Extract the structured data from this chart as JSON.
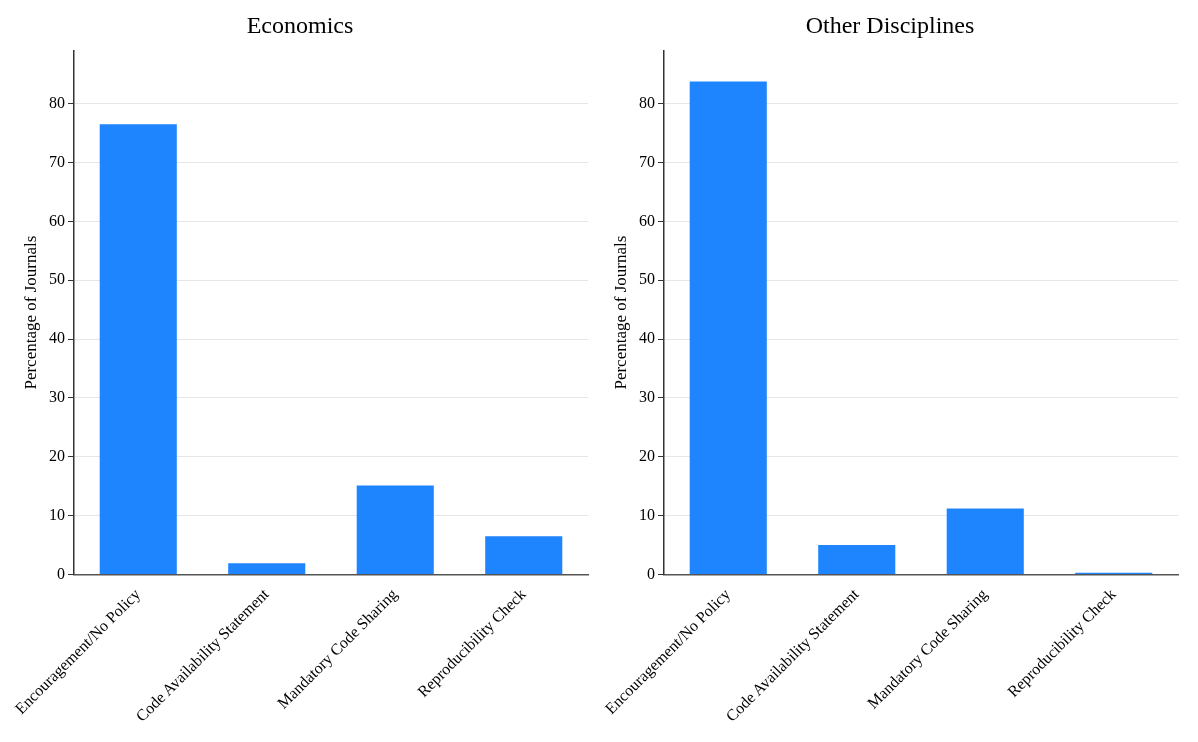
{
  "chart_data": [
    {
      "type": "bar",
      "title": "Economics",
      "ylabel": "Percentage of Journals",
      "categories": [
        "Encouragement/No Policy",
        "Code Availability Statement",
        "Mandatory Code Sharing",
        "Reproducibility Check"
      ],
      "values": [
        76.5,
        1.9,
        15.1,
        6.5
      ],
      "color": "#1e85ff",
      "ylim": [
        0,
        89
      ],
      "yticks": [
        0,
        10,
        20,
        30,
        40,
        50,
        60,
        70,
        80
      ],
      "grid": "y",
      "legend": false
    },
    {
      "type": "bar",
      "title": "Other Disciplines",
      "ylabel": "Percentage of Journals",
      "categories": [
        "Encouragement/No Policy",
        "Code Availability Statement",
        "Mandatory Code Sharing",
        "Reproducibility Check"
      ],
      "values": [
        83.8,
        5.0,
        11.2,
        0.3
      ],
      "color": "#1e85ff",
      "ylim": [
        0,
        89
      ],
      "yticks": [
        0,
        10,
        20,
        30,
        40,
        50,
        60,
        70,
        80
      ],
      "grid": "y",
      "legend": false
    }
  ]
}
